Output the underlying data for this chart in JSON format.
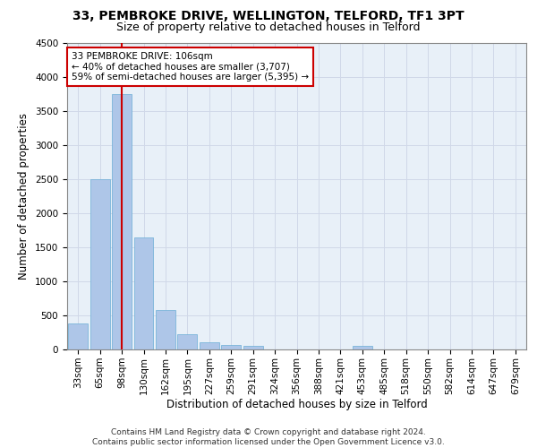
{
  "title_line1": "33, PEMBROKE DRIVE, WELLINGTON, TELFORD, TF1 3PT",
  "title_line2": "Size of property relative to detached houses in Telford",
  "xlabel": "Distribution of detached houses by size in Telford",
  "ylabel": "Number of detached properties",
  "categories": [
    "33sqm",
    "65sqm",
    "98sqm",
    "130sqm",
    "162sqm",
    "195sqm",
    "227sqm",
    "259sqm",
    "291sqm",
    "324sqm",
    "356sqm",
    "388sqm",
    "421sqm",
    "453sqm",
    "485sqm",
    "518sqm",
    "550sqm",
    "582sqm",
    "614sqm",
    "647sqm",
    "679sqm"
  ],
  "values": [
    375,
    2500,
    3750,
    1640,
    580,
    220,
    105,
    60,
    55,
    0,
    0,
    0,
    0,
    55,
    0,
    0,
    0,
    0,
    0,
    0,
    0
  ],
  "bar_color": "#aec6e8",
  "bar_edgecolor": "#6aaed6",
  "vline_x": 2,
  "vline_color": "#cc0000",
  "annotation_text": "33 PEMBROKE DRIVE: 106sqm\n← 40% of detached houses are smaller (3,707)\n59% of semi-detached houses are larger (5,395) →",
  "annotation_box_color": "#ffffff",
  "annotation_box_edgecolor": "#cc0000",
  "ylim": [
    0,
    4500
  ],
  "yticks": [
    0,
    500,
    1000,
    1500,
    2000,
    2500,
    3000,
    3500,
    4000,
    4500
  ],
  "grid_color": "#d0d8e8",
  "background_color": "#e8f0f8",
  "footer_text": "Contains HM Land Registry data © Crown copyright and database right 2024.\nContains public sector information licensed under the Open Government Licence v3.0.",
  "title_fontsize": 10,
  "subtitle_fontsize": 9,
  "axis_label_fontsize": 8.5,
  "tick_fontsize": 7.5,
  "annotation_fontsize": 7.5,
  "footer_fontsize": 6.5
}
